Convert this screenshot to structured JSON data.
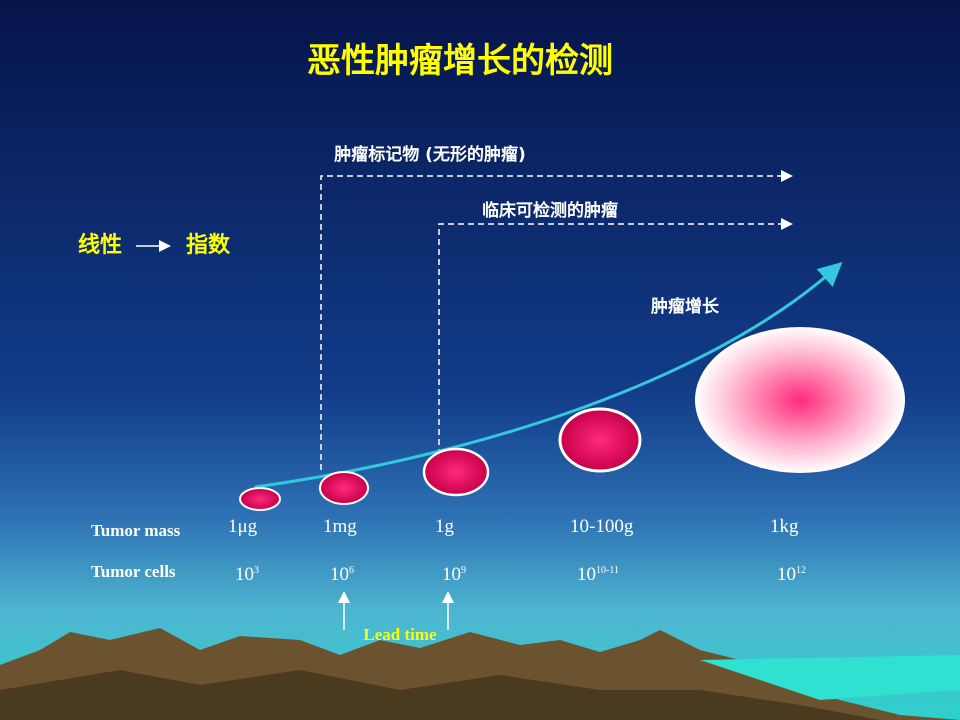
{
  "header": {
    "title": "恶性肿瘤增长的检测"
  },
  "legend": {
    "from": "线性",
    "to": "指数"
  },
  "annotations": {
    "markers": "肿瘤标记物 (无形的肿瘤)",
    "clinical": "临床可检测的肿瘤",
    "growth": "肿瘤增长",
    "lead_time": "Lead time"
  },
  "table": {
    "row_labels": [
      "Tumor mass",
      "Tumor cells"
    ],
    "mass": [
      "1μg",
      "1mg",
      "1g",
      "10-100g",
      "1kg"
    ],
    "cells": [
      {
        "base": "10",
        "exp": "3"
      },
      {
        "base": "10",
        "exp": "6"
      },
      {
        "base": "10",
        "exp": "9"
      },
      {
        "base": "10",
        "exp": "10-11"
      },
      {
        "base": "10",
        "exp": "12"
      }
    ]
  }
}
